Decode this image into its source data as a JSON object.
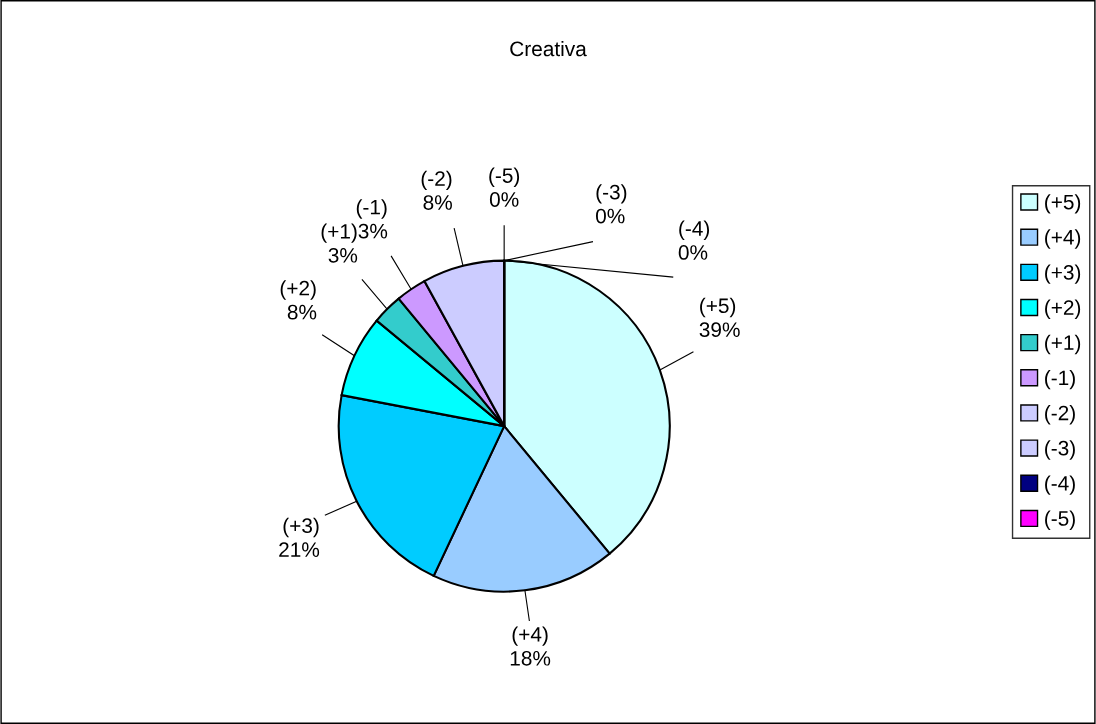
{
  "chart_data": {
    "type": "pie",
    "title": "Creativa",
    "categories": [
      "(+5)",
      "(+4)",
      "(+3)",
      "(+2)",
      "(+1)",
      "(-1)",
      "(-2)",
      "(-3)",
      "(-4)",
      "(-5)"
    ],
    "values": [
      39,
      18,
      21,
      8,
      3,
      3,
      8,
      0,
      0,
      0
    ],
    "colors": [
      "#ccffff",
      "#99ccff",
      "#00ccff",
      "#00ffff",
      "#33cccc",
      "#cc99ff",
      "#ccccff",
      "#ccccff",
      "#000080",
      "#ff00ff"
    ],
    "value_labels": [
      "39%",
      "18%",
      "21%",
      "8%",
      "3%",
      "3%",
      "8%",
      "0%",
      "0%",
      "0%"
    ],
    "legend": "right"
  }
}
